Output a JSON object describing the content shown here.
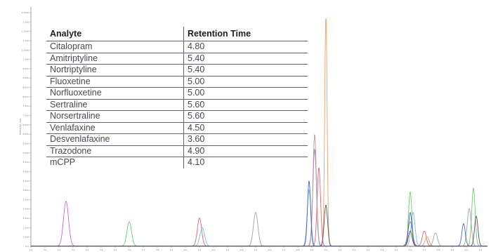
{
  "chart_data": {
    "type": "line",
    "title": "",
    "xlabel": "",
    "ylabel": "Intensity, cps",
    "xlim": [
      2.9,
      6.15
    ],
    "ylim": [
      0,
      1.28
    ],
    "grid": false,
    "y_ticks": [
      "0.0",
      "5.0e4",
      "1.0e5",
      "1.5e5",
      "2.0e5",
      "2.5e5",
      "3.0e5",
      "3.5e5",
      "4.0e5",
      "4.5e5",
      "5.0e5",
      "5.5e5",
      "6.0e5",
      "6.5e5",
      "7.0e5",
      "7.5e5",
      "8.0e5",
      "8.5e5",
      "9.0e5",
      "9.5e5",
      "1.0e6",
      "1.05e6",
      "1.1e6",
      "1.15e6",
      "1.2e6",
      "1.25e6"
    ],
    "x_ticks": [
      "2.9",
      "3.0",
      "3.1",
      "3.2",
      "3.3",
      "3.4",
      "3.5",
      "3.6",
      "3.7",
      "3.8",
      "3.9",
      "4.0",
      "4.1",
      "4.2",
      "4.3",
      "4.4",
      "4.5",
      "4.6",
      "4.7",
      "4.8",
      "4.9",
      "5.0",
      "5.1",
      "5.2",
      "5.3",
      "5.4",
      "5.5",
      "5.6",
      "5.7",
      "5.8",
      "5.9",
      "6.0",
      "6.1"
    ],
    "series": [
      {
        "color": "#c05ac8",
        "peaks": [
          [
            3.15,
            0.24,
            0.018
          ],
          [
            4.92,
            0.52,
            0.013
          ],
          [
            5.6,
            0.13,
            0.016
          ]
        ]
      },
      {
        "color": "#5fc85f",
        "peaks": [
          [
            3.6,
            0.13,
            0.016
          ],
          [
            5.6,
            0.29,
            0.012
          ],
          [
            6.05,
            0.31,
            0.012
          ]
        ]
      },
      {
        "color": "#e0506a",
        "peaks": [
          [
            4.1,
            0.15,
            0.015
          ],
          [
            4.95,
            0.42,
            0.012
          ],
          [
            5.7,
            0.08,
            0.014
          ]
        ]
      },
      {
        "color": "#f0955a",
        "peaks": [
          [
            5.0,
            1.24,
            0.0085
          ],
          [
            5.72,
            0.05,
            0.014
          ]
        ]
      },
      {
        "color": "#6fb7d8",
        "peaks": [
          [
            4.12,
            0.1,
            0.016
          ],
          [
            4.88,
            0.3,
            0.013
          ],
          [
            5.62,
            0.18,
            0.014
          ]
        ]
      },
      {
        "color": "#9a9a9a",
        "peaks": [
          [
            4.5,
            0.18,
            0.016
          ],
          [
            4.92,
            0.6,
            0.012
          ],
          [
            5.78,
            0.07,
            0.014
          ],
          [
            6.02,
            0.2,
            0.014
          ]
        ]
      },
      {
        "color": "#3656b8",
        "peaks": [
          [
            4.88,
            0.35,
            0.011
          ],
          [
            5.6,
            0.18,
            0.012
          ],
          [
            5.98,
            0.12,
            0.012
          ]
        ]
      },
      {
        "color": "#444444",
        "peaks": [
          [
            5.0,
            0.22,
            0.012
          ],
          [
            5.6,
            0.08,
            0.013
          ],
          [
            6.07,
            0.16,
            0.012
          ]
        ]
      }
    ]
  },
  "table": {
    "headers": [
      "Analyte",
      "Retention Time"
    ],
    "rows": [
      [
        "Citalopram",
        "4.80"
      ],
      [
        "Amitriptyline",
        "5.40"
      ],
      [
        "Nortriptyline",
        "5.40"
      ],
      [
        "Fluoxetine",
        "5.00"
      ],
      [
        "Norfluoxetine",
        "5.00"
      ],
      [
        "Sertraline",
        "5.60"
      ],
      [
        "Norsertraline",
        "5.60"
      ],
      [
        "Venlafaxine",
        "4.50"
      ],
      [
        "Desvenlafaxine",
        "3.60"
      ],
      [
        "Trazodone",
        "4.90"
      ],
      [
        "mCPP",
        "4.10"
      ]
    ]
  }
}
